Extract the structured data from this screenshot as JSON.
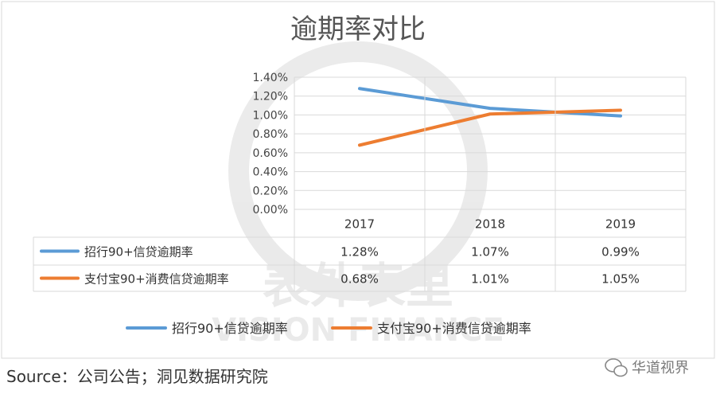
{
  "chart_data": {
    "type": "line",
    "title": "逾期率对比",
    "categories": [
      "2017",
      "2018",
      "2019"
    ],
    "y_ticks": [
      "0.00%",
      "0.20%",
      "0.40%",
      "0.60%",
      "0.80%",
      "1.00%",
      "1.20%",
      "1.40%"
    ],
    "ylim": [
      0,
      1.4
    ],
    "grid": true,
    "legend_position": "bottom",
    "data_table": true,
    "series": [
      {
        "name": "招行90+信贷逾期率",
        "color": "#5b9bd5",
        "values": [
          1.28,
          1.07,
          0.99
        ],
        "labels": [
          "1.28%",
          "1.07%",
          "0.99%"
        ]
      },
      {
        "name": "支付宝90+消费信贷逾期率",
        "color": "#ed7d31",
        "values": [
          0.68,
          1.01,
          1.05
        ],
        "labels": [
          "0.68%",
          "1.01%",
          "1.05%"
        ]
      }
    ]
  },
  "source_text": "Source：公司公告；洞见数据研究院",
  "brand_text": "华道视界",
  "brand_icon": "wechat-icon",
  "watermark": {
    "line1": "表外表里",
    "line2": "VISION FINANCE"
  }
}
